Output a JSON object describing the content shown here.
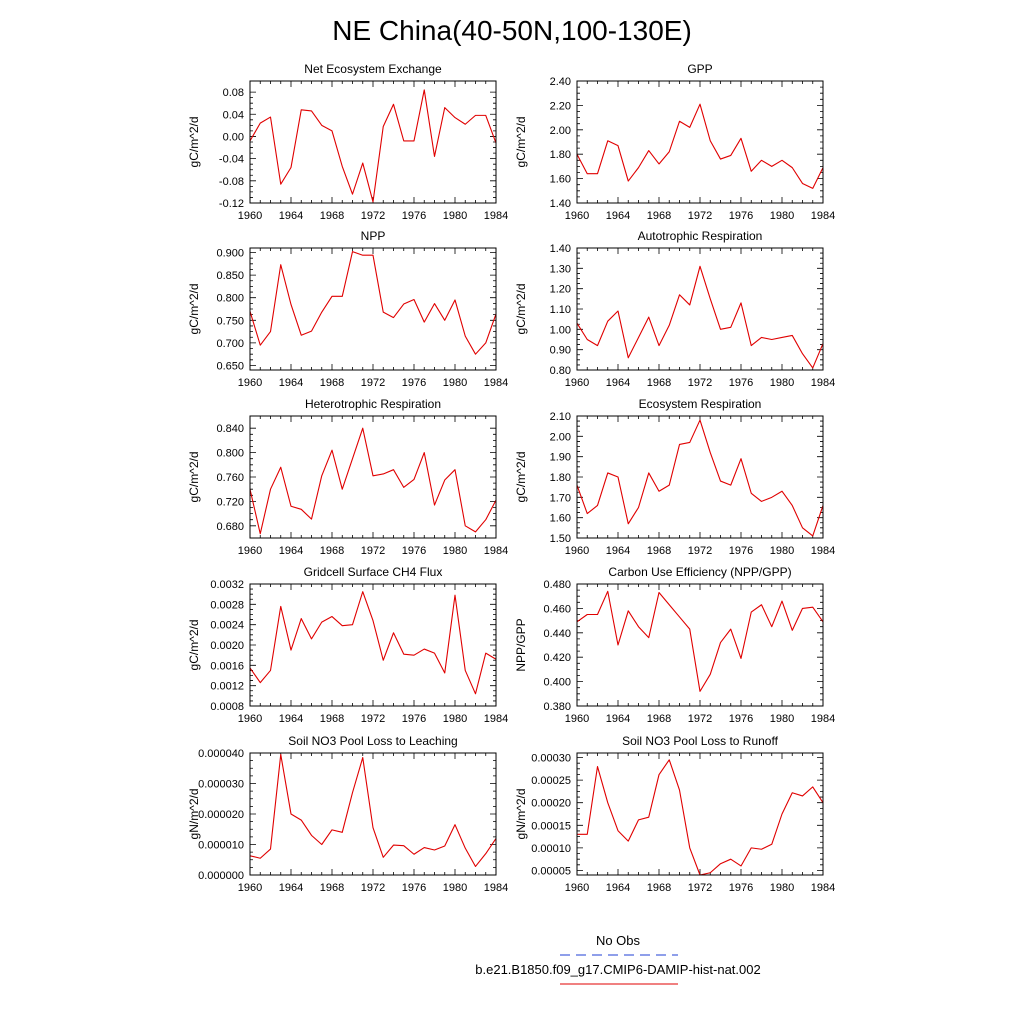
{
  "figure": {
    "title": "NE China(40-50N,100-130E)",
    "legend": {
      "obs_label": "No Obs",
      "model_label": "b.e21.B1850.f09_g17.CMIP6-DAMIP-hist-nat.002",
      "obs_color": "#1f3fd6",
      "model_color": "#e00000"
    }
  },
  "chart_data": [
    {
      "type": "line",
      "title": "Net Ecosystem Exchange",
      "ylabel": "gC/m^2/d",
      "xlabel": "",
      "xlim": [
        1960,
        1984
      ],
      "ylim": [
        -0.12,
        0.1
      ],
      "xticks": [
        "1960",
        "1964",
        "1968",
        "1972",
        "1976",
        "1980",
        "1984"
      ],
      "yticks": [
        "-0.12",
        "-0.08",
        "-0.04",
        "0.00",
        "0.04",
        "0.08"
      ],
      "x": [
        1960,
        1961,
        1962,
        1963,
        1964,
        1965,
        1966,
        1967,
        1968,
        1969,
        1970,
        1971,
        1972,
        1973,
        1974,
        1975,
        1976,
        1977,
        1978,
        1979,
        1980,
        1981,
        1982,
        1983,
        1984
      ],
      "series": [
        {
          "values": [
            -0.008,
            0.024,
            0.035,
            -0.086,
            -0.056,
            0.048,
            0.046,
            0.02,
            0.01,
            -0.054,
            -0.104,
            -0.048,
            -0.118,
            0.018,
            0.058,
            -0.008,
            -0.008,
            0.084,
            -0.036,
            0.052,
            0.034,
            0.022,
            0.038,
            0.038,
            -0.012
          ],
          "color": "#e00000"
        }
      ]
    },
    {
      "type": "line",
      "title": "GPP",
      "ylabel": "gC/m^2/d",
      "xlabel": "",
      "xlim": [
        1960,
        1984
      ],
      "ylim": [
        1.4,
        2.4
      ],
      "xticks": [
        "1960",
        "1964",
        "1968",
        "1972",
        "1976",
        "1980",
        "1984"
      ],
      "yticks": [
        "1.40",
        "1.60",
        "1.80",
        "2.00",
        "2.20",
        "2.40"
      ],
      "x": [
        1960,
        1961,
        1962,
        1963,
        1964,
        1965,
        1966,
        1967,
        1968,
        1969,
        1970,
        1971,
        1972,
        1973,
        1974,
        1975,
        1976,
        1977,
        1978,
        1979,
        1980,
        1981,
        1982,
        1983,
        1984
      ],
      "series": [
        {
          "values": [
            1.8,
            1.64,
            1.64,
            1.91,
            1.87,
            1.58,
            1.69,
            1.83,
            1.72,
            1.82,
            2.07,
            2.02,
            2.21,
            1.91,
            1.76,
            1.79,
            1.93,
            1.66,
            1.75,
            1.7,
            1.75,
            1.69,
            1.56,
            1.52,
            1.69
          ],
          "color": "#e00000"
        }
      ]
    },
    {
      "type": "line",
      "title": "NPP",
      "ylabel": "gC/m^2/d",
      "xlabel": "",
      "xlim": [
        1960,
        1984
      ],
      "ylim": [
        0.64,
        0.91
      ],
      "xticks": [
        "1960",
        "1964",
        "1968",
        "1972",
        "1976",
        "1980",
        "1984"
      ],
      "yticks": [
        "0.650",
        "0.700",
        "0.750",
        "0.800",
        "0.850",
        "0.900"
      ],
      "x": [
        1960,
        1961,
        1962,
        1963,
        1964,
        1965,
        1966,
        1967,
        1968,
        1969,
        1970,
        1971,
        1972,
        1973,
        1974,
        1975,
        1976,
        1977,
        1978,
        1979,
        1980,
        1981,
        1982,
        1983,
        1984
      ],
      "series": [
        {
          "values": [
            0.77,
            0.695,
            0.725,
            0.873,
            0.785,
            0.717,
            0.726,
            0.768,
            0.803,
            0.803,
            0.902,
            0.894,
            0.894,
            0.768,
            0.756,
            0.786,
            0.796,
            0.746,
            0.787,
            0.75,
            0.795,
            0.715,
            0.675,
            0.7,
            0.764
          ],
          "color": "#e00000"
        }
      ]
    },
    {
      "type": "line",
      "title": "Autotrophic Respiration",
      "ylabel": "gC/m^2/d",
      "xlabel": "",
      "xlim": [
        1960,
        1984
      ],
      "ylim": [
        0.8,
        1.4
      ],
      "xticks": [
        "1960",
        "1964",
        "1968",
        "1972",
        "1976",
        "1980",
        "1984"
      ],
      "yticks": [
        "0.80",
        "0.90",
        "1.00",
        "1.10",
        "1.20",
        "1.30",
        "1.40"
      ],
      "x": [
        1960,
        1961,
        1962,
        1963,
        1964,
        1965,
        1966,
        1967,
        1968,
        1969,
        1970,
        1971,
        1972,
        1973,
        1974,
        1975,
        1976,
        1977,
        1978,
        1979,
        1980,
        1981,
        1982,
        1983,
        1984
      ],
      "series": [
        {
          "values": [
            1.03,
            0.95,
            0.92,
            1.04,
            1.09,
            0.86,
            0.96,
            1.06,
            0.92,
            1.02,
            1.17,
            1.12,
            1.31,
            1.15,
            1.0,
            1.01,
            1.13,
            0.92,
            0.96,
            0.95,
            0.96,
            0.97,
            0.88,
            0.81,
            0.93
          ],
          "color": "#e00000"
        }
      ]
    },
    {
      "type": "line",
      "title": "Heterotrophic Respiration",
      "ylabel": "gC/m^2/d",
      "xlabel": "",
      "xlim": [
        1960,
        1984
      ],
      "ylim": [
        0.66,
        0.86
      ],
      "xticks": [
        "1960",
        "1964",
        "1968",
        "1972",
        "1976",
        "1980",
        "1984"
      ],
      "yticks": [
        "0.680",
        "0.720",
        "0.760",
        "0.800",
        "0.840"
      ],
      "x": [
        1960,
        1961,
        1962,
        1963,
        1964,
        1965,
        1966,
        1967,
        1968,
        1969,
        1970,
        1971,
        1972,
        1973,
        1974,
        1975,
        1976,
        1977,
        1978,
        1979,
        1980,
        1981,
        1982,
        1983,
        1984
      ],
      "series": [
        {
          "values": [
            0.74,
            0.667,
            0.74,
            0.776,
            0.712,
            0.707,
            0.691,
            0.762,
            0.804,
            0.74,
            0.79,
            0.84,
            0.762,
            0.765,
            0.772,
            0.743,
            0.756,
            0.8,
            0.714,
            0.755,
            0.772,
            0.68,
            0.67,
            0.69,
            0.722
          ],
          "color": "#e00000"
        }
      ]
    },
    {
      "type": "line",
      "title": "Ecosystem Respiration",
      "ylabel": "gC/m^2/d",
      "xlabel": "",
      "xlim": [
        1960,
        1984
      ],
      "ylim": [
        1.5,
        2.1
      ],
      "xticks": [
        "1960",
        "1964",
        "1968",
        "1972",
        "1976",
        "1980",
        "1984"
      ],
      "yticks": [
        "1.50",
        "1.60",
        "1.70",
        "1.80",
        "1.90",
        "2.00",
        "2.10"
      ],
      "x": [
        1960,
        1961,
        1962,
        1963,
        1964,
        1965,
        1966,
        1967,
        1968,
        1969,
        1970,
        1971,
        1972,
        1973,
        1974,
        1975,
        1976,
        1977,
        1978,
        1979,
        1980,
        1981,
        1982,
        1983,
        1984
      ],
      "series": [
        {
          "values": [
            1.76,
            1.62,
            1.66,
            1.82,
            1.8,
            1.57,
            1.65,
            1.82,
            1.73,
            1.76,
            1.96,
            1.97,
            2.08,
            1.92,
            1.78,
            1.76,
            1.89,
            1.72,
            1.68,
            1.7,
            1.73,
            1.66,
            1.55,
            1.51,
            1.66
          ],
          "color": "#e00000"
        }
      ]
    },
    {
      "type": "line",
      "title": "Gridcell Surface CH4 Flux",
      "ylabel": "gC/m^2/d",
      "xlabel": "",
      "xlim": [
        1960,
        1984
      ],
      "ylim": [
        0.0008,
        0.0032
      ],
      "xticks": [
        "1960",
        "1964",
        "1968",
        "1972",
        "1976",
        "1980",
        "1984"
      ],
      "yticks": [
        "0.0008",
        "0.0012",
        "0.0016",
        "0.0020",
        "0.0024",
        "0.0028",
        "0.0032"
      ],
      "x": [
        1960,
        1961,
        1962,
        1963,
        1964,
        1965,
        1966,
        1967,
        1968,
        1969,
        1970,
        1971,
        1972,
        1973,
        1974,
        1975,
        1976,
        1977,
        1978,
        1979,
        1980,
        1981,
        1982,
        1983,
        1984
      ],
      "series": [
        {
          "values": [
            0.00155,
            0.00126,
            0.0015,
            0.00276,
            0.0019,
            0.00252,
            0.00212,
            0.00245,
            0.00256,
            0.00238,
            0.0024,
            0.00305,
            0.00248,
            0.0017,
            0.00224,
            0.00182,
            0.0018,
            0.00192,
            0.00184,
            0.00145,
            0.00298,
            0.0015,
            0.00104,
            0.00184,
            0.00172
          ],
          "color": "#e00000"
        }
      ]
    },
    {
      "type": "line",
      "title": "Carbon Use Efficiency (NPP/GPP)",
      "ylabel": "NPP/GPP",
      "xlabel": "",
      "xlim": [
        1960,
        1984
      ],
      "ylim": [
        0.38,
        0.48
      ],
      "xticks": [
        "1960",
        "1964",
        "1968",
        "1972",
        "1976",
        "1980",
        "1984"
      ],
      "yticks": [
        "0.380",
        "0.400",
        "0.420",
        "0.440",
        "0.460",
        "0.480"
      ],
      "x": [
        1960,
        1961,
        1962,
        1963,
        1964,
        1965,
        1966,
        1967,
        1968,
        1969,
        1970,
        1971,
        1972,
        1973,
        1974,
        1975,
        1976,
        1977,
        1978,
        1979,
        1980,
        1981,
        1982,
        1983,
        1984
      ],
      "series": [
        {
          "values": [
            0.449,
            0.455,
            0.455,
            0.474,
            0.43,
            0.458,
            0.445,
            0.436,
            0.473,
            0.463,
            0.453,
            0.443,
            0.392,
            0.406,
            0.432,
            0.443,
            0.419,
            0.457,
            0.463,
            0.445,
            0.466,
            0.442,
            0.46,
            0.461,
            0.449
          ],
          "color": "#e00000"
        }
      ]
    },
    {
      "type": "line",
      "title": "Soil NO3 Pool Loss to Leaching",
      "ylabel": "gN/m^2/d",
      "xlabel": "",
      "xlim": [
        1960,
        1984
      ],
      "ylim": [
        0.0,
        4e-05
      ],
      "xticks": [
        "1960",
        "1964",
        "1968",
        "1972",
        "1976",
        "1980",
        "1984"
      ],
      "yticks": [
        "0.000000",
        "0.000010",
        "0.000020",
        "0.000030",
        "0.000040"
      ],
      "x": [
        1960,
        1961,
        1962,
        1963,
        1964,
        1965,
        1966,
        1967,
        1968,
        1969,
        1970,
        1971,
        1972,
        1973,
        1974,
        1975,
        1976,
        1977,
        1978,
        1979,
        1980,
        1981,
        1982,
        1983,
        1984
      ],
      "series": [
        {
          "values": [
            6.3e-06,
            5.5e-06,
            8.5e-06,
            3.95e-05,
            2e-05,
            1.8e-05,
            1.3e-05,
            1e-05,
            1.48e-05,
            1.4e-05,
            2.7e-05,
            3.85e-05,
            1.55e-05,
            5.8e-06,
            9.8e-06,
            9.6e-06,
            6.8e-06,
            9e-06,
            8.2e-06,
            9.5e-06,
            1.65e-05,
            8.8e-06,
            2.8e-06,
            7e-06,
            1.2e-05
          ],
          "color": "#e00000"
        }
      ]
    },
    {
      "type": "line",
      "title": "Soil NO3 Pool Loss to Runoff",
      "ylabel": "gN/m^2/d",
      "xlabel": "",
      "xlim": [
        1960,
        1984
      ],
      "ylim": [
        4e-05,
        0.00031
      ],
      "xticks": [
        "1960",
        "1964",
        "1968",
        "1972",
        "1976",
        "1980",
        "1984"
      ],
      "yticks": [
        "0.00005",
        "0.00010",
        "0.00015",
        "0.00020",
        "0.00025",
        "0.00030"
      ],
      "x": [
        1960,
        1961,
        1962,
        1963,
        1964,
        1965,
        1966,
        1967,
        1968,
        1969,
        1970,
        1971,
        1972,
        1973,
        1974,
        1975,
        1976,
        1977,
        1978,
        1979,
        1980,
        1981,
        1982,
        1983,
        1984
      ],
      "series": [
        {
          "values": [
            0.00013,
            0.00013,
            0.00028,
            0.0002,
            0.000138,
            0.000115,
            0.000162,
            0.000168,
            0.000262,
            0.000295,
            0.000228,
            0.0001,
            4e-05,
            4.5e-05,
            6.5e-05,
            7.5e-05,
            6e-05,
            0.0001,
            9.7e-05,
            0.000108,
            0.000175,
            0.000222,
            0.000215,
            0.000235,
            0.0002
          ],
          "color": "#e00000"
        }
      ]
    }
  ]
}
